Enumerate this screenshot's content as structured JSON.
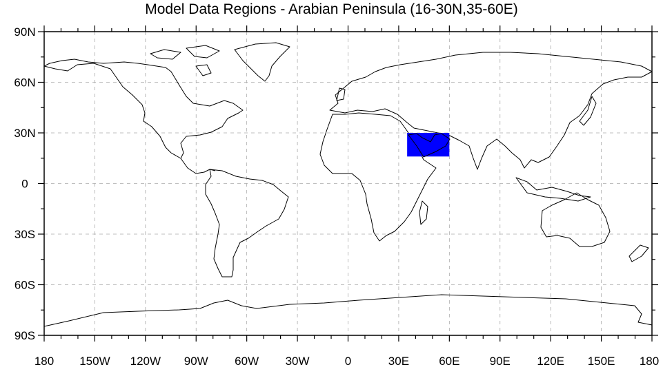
{
  "title": "Model Data Regions - Arabian Peninsula (16-30N,35-60E)",
  "lat_labels": [
    "90N",
    "60N",
    "30N",
    "0",
    "30S",
    "60S",
    "90S"
  ],
  "lat_values": [
    90,
    60,
    30,
    0,
    -30,
    -60,
    -90
  ],
  "lon_labels": [
    "180",
    "150W",
    "120W",
    "90W",
    "60W",
    "30W",
    "0",
    "30E",
    "60E",
    "90E",
    "120E",
    "150E",
    "180"
  ],
  "lon_values": [
    -180,
    -150,
    -120,
    -90,
    -60,
    -30,
    0,
    30,
    60,
    90,
    120,
    150,
    180
  ],
  "extent": {
    "lon": [
      -180,
      180
    ],
    "lat": [
      -90,
      90
    ]
  },
  "grid": {
    "lat_step": 30,
    "lon_step": 30,
    "style": "dashed",
    "color": "#aaaaaa"
  },
  "region": {
    "lat": [
      16,
      30
    ],
    "lon": [
      35,
      60
    ],
    "fill": "#0000ff"
  },
  "colors": {
    "coast": "#000000",
    "frame": "#000000"
  }
}
